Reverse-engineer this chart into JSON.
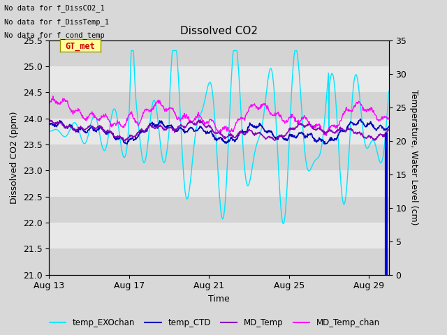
{
  "title": "Dissolved CO2",
  "xlabel": "Time",
  "ylabel_left": "Dissolved CO2 (ppm)",
  "ylabel_right": "Temperature, Water Level (cm)",
  "ylim_left": [
    21.0,
    25.5
  ],
  "ylim_right": [
    0,
    35
  ],
  "yticks_left": [
    21.0,
    21.5,
    22.0,
    22.5,
    23.0,
    23.5,
    24.0,
    24.5,
    25.0,
    25.5
  ],
  "yticks_right": [
    0,
    5,
    10,
    15,
    20,
    25,
    30,
    35
  ],
  "xtick_labels": [
    "Aug 13",
    "Aug 17",
    "Aug 21",
    "Aug 25",
    "Aug 29"
  ],
  "xtick_positions": [
    0,
    4,
    8,
    12,
    16
  ],
  "no_data_texts": [
    "No data for f_DissCO2_1",
    "No data for f_DissTemp_1",
    "No data for f_cond_temp"
  ],
  "gt_met_label": "GT_met",
  "gt_met_color": "#cc0000",
  "gt_met_bg": "#ffff99",
  "fig_bg": "#d8d8d8",
  "band_colors": [
    "#d0d0d0",
    "#e0e0e0"
  ],
  "legend_entries": [
    "temp_EXOchan",
    "temp_CTD",
    "MD_Temp",
    "MD_Temp_chan"
  ],
  "legend_colors": [
    "#00e5ff",
    "#0000cc",
    "#9900cc",
    "#ff00ff"
  ],
  "n_points": 800,
  "t_max": 17.0
}
